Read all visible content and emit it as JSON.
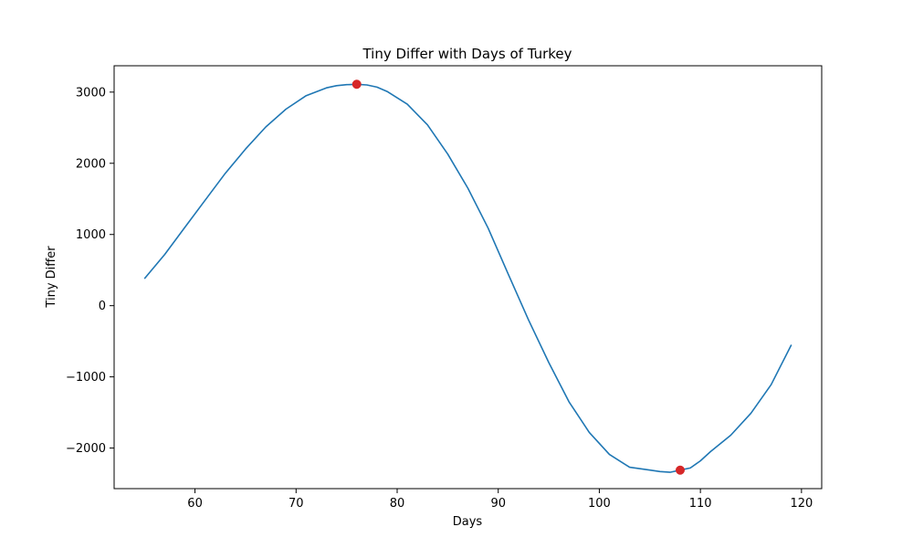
{
  "chart_data": {
    "type": "line",
    "title": "Tiny Differ with Days of Turkey",
    "xlabel": "Days",
    "ylabel": "Tiny Differ",
    "xlim": [
      52,
      122
    ],
    "ylim": [
      -2570,
      3370
    ],
    "x_ticks": [
      60,
      70,
      80,
      90,
      100,
      110,
      120
    ],
    "y_ticks": [
      -2000,
      -1000,
      0,
      1000,
      2000,
      3000
    ],
    "x_tick_labels": [
      "60",
      "70",
      "80",
      "90",
      "100",
      "110",
      "120"
    ],
    "y_tick_labels": [
      "−2000",
      "−1000",
      "0",
      "1000",
      "2000",
      "3000"
    ],
    "grid": false,
    "series": [
      {
        "color": "#1f77b4",
        "x": [
          55,
          57,
          59,
          61,
          63,
          65,
          67,
          69,
          71,
          73,
          74,
          75,
          76,
          77,
          78,
          79,
          81,
          83,
          85,
          87,
          89,
          91,
          93,
          95,
          97,
          99,
          101,
          103,
          105,
          106,
          107,
          108,
          109,
          110,
          111,
          113,
          115,
          117,
          119
        ],
        "y": [
          380,
          720,
          1100,
          1480,
          1860,
          2200,
          2510,
          2760,
          2950,
          3060,
          3090,
          3105,
          3110,
          3100,
          3070,
          3010,
          2830,
          2540,
          2130,
          1650,
          1090,
          440,
          -200,
          -800,
          -1350,
          -1780,
          -2090,
          -2270,
          -2310,
          -2330,
          -2340,
          -2310,
          -2280,
          -2180,
          -2050,
          -1820,
          -1510,
          -1110,
          -550
        ]
      }
    ],
    "highlight_points": [
      {
        "x": 76,
        "y": 3110,
        "color": "#d62728"
      },
      {
        "x": 108,
        "y": -2310,
        "color": "#d62728"
      }
    ]
  }
}
